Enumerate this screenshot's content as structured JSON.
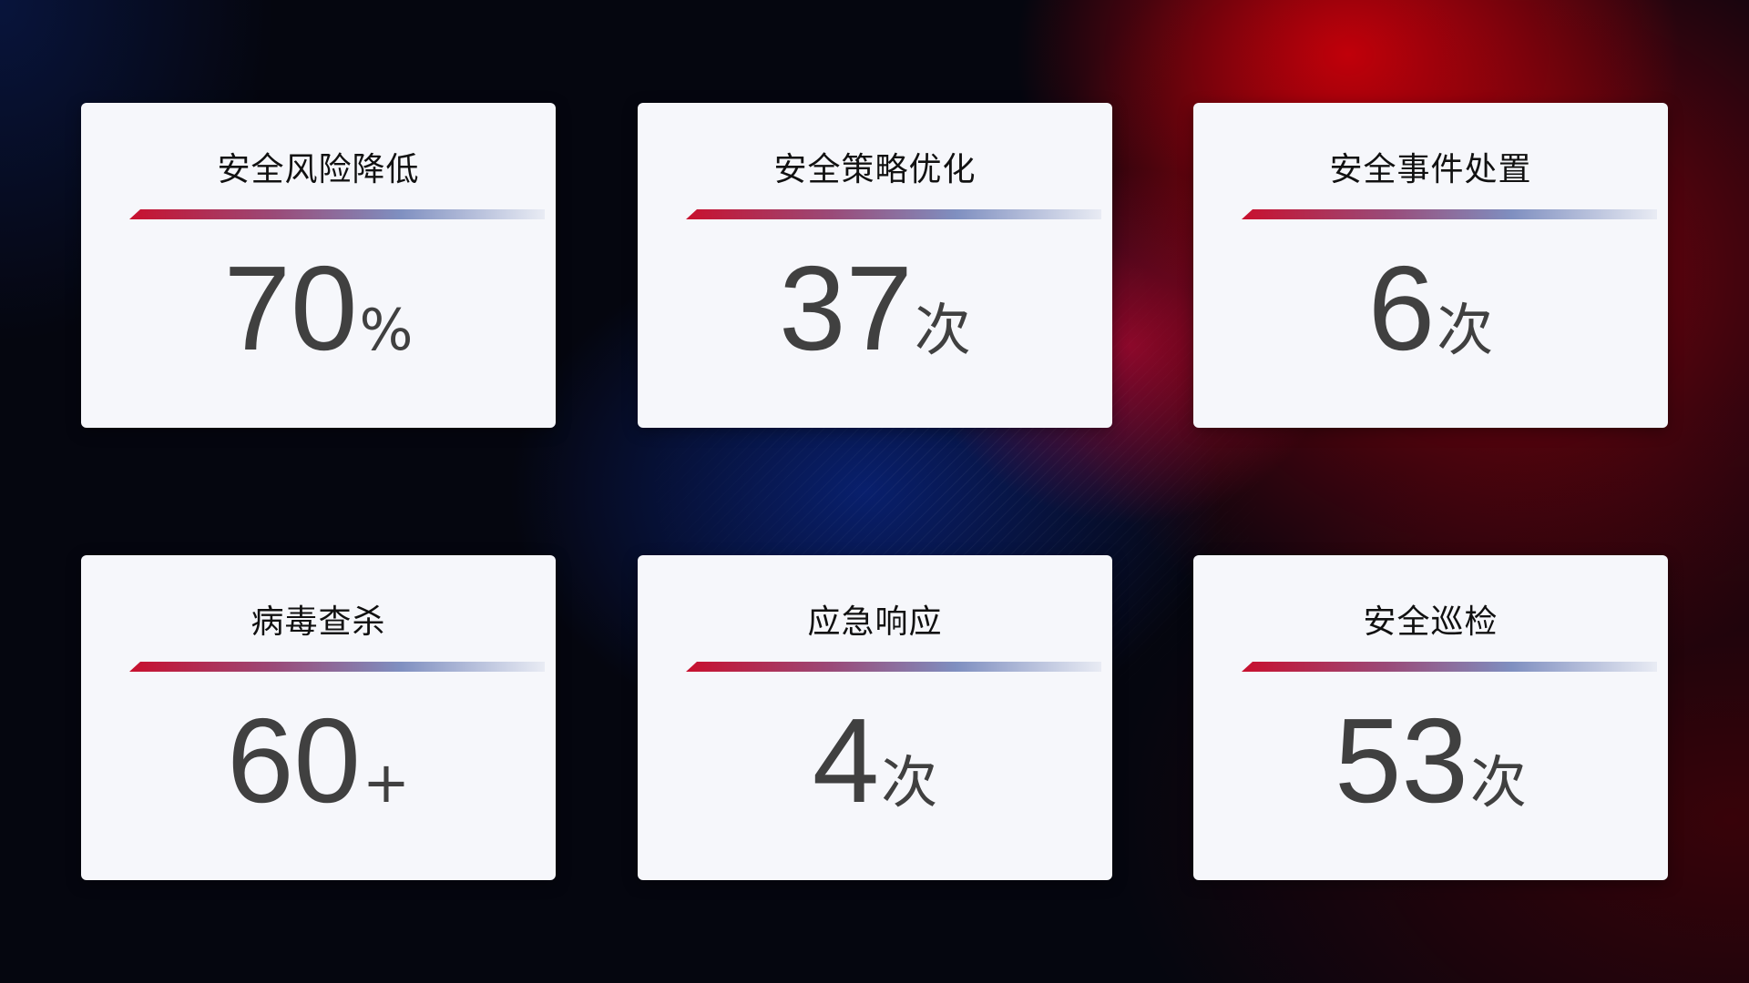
{
  "cards": [
    {
      "title": "安全风险降低",
      "value": "70",
      "unit": "%"
    },
    {
      "title": "安全策略优化",
      "value": "37",
      "unit": "次"
    },
    {
      "title": "安全事件处置",
      "value": "6",
      "unit": "次"
    },
    {
      "title": "病毒查杀",
      "value": "60",
      "unit": "+"
    },
    {
      "title": "应急响应",
      "value": "4",
      "unit": "次"
    },
    {
      "title": "安全巡检",
      "value": "53",
      "unit": "次"
    }
  ],
  "colors": {
    "accent_red": "#c8102e",
    "accent_blue": "#7f8fc0",
    "card_bg": "#f6f7fb",
    "value_text": "#404040"
  }
}
